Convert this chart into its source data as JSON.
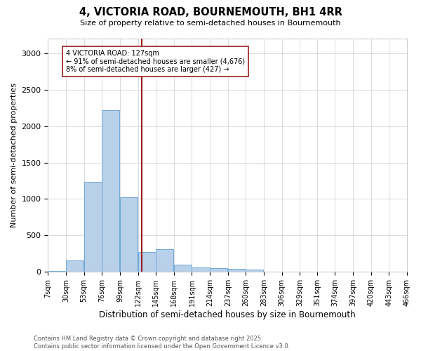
{
  "title": "4, VICTORIA ROAD, BOURNEMOUTH, BH1 4RR",
  "subtitle": "Size of property relative to semi-detached houses in Bournemouth",
  "xlabel": "Distribution of semi-detached houses by size in Bournemouth",
  "ylabel": "Number of semi-detached properties",
  "footnote1": "Contains HM Land Registry data © Crown copyright and database right 2025.",
  "footnote2": "Contains public sector information licensed under the Open Government Licence v3.0.",
  "property_label": "4 VICTORIA ROAD: 127sqm",
  "pct_smaller": "← 91% of semi-detached houses are smaller (4,676)",
  "pct_larger": "8% of semi-detached houses are larger (427) →",
  "marker_value": 127,
  "bin_edges": [
    7,
    30,
    53,
    76,
    99,
    122,
    145,
    168,
    191,
    214,
    237,
    260,
    283,
    306,
    329,
    351,
    374,
    397,
    420,
    443,
    466
  ],
  "bin_labels": [
    "7sqm",
    "30sqm",
    "53sqm",
    "76sqm",
    "99sqm",
    "122sqm",
    "145sqm",
    "168sqm",
    "191sqm",
    "214sqm",
    "237sqm",
    "260sqm",
    "283sqm",
    "306sqm",
    "329sqm",
    "351sqm",
    "374sqm",
    "397sqm",
    "420sqm",
    "443sqm",
    "466sqm"
  ],
  "counts": [
    15,
    155,
    1240,
    2220,
    1020,
    270,
    310,
    100,
    60,
    55,
    40,
    30,
    5,
    0,
    0,
    0,
    0,
    0,
    0,
    0,
    0
  ],
  "bar_color": "#b8d0ea",
  "bar_edge_color": "#6ea8d5",
  "line_color": "#9b1c1c",
  "background_color": "#ffffff",
  "grid_color": "#cccccc",
  "ylim": [
    0,
    3200
  ],
  "yticks": [
    0,
    500,
    1000,
    1500,
    2000,
    2500,
    3000
  ],
  "figwidth": 6.0,
  "figheight": 5.0,
  "dpi": 100
}
